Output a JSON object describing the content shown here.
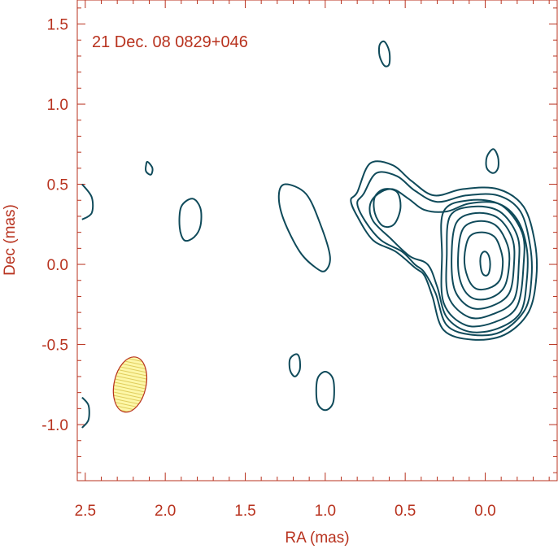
{
  "colors": {
    "axis": "#b8321e",
    "contour": "#0f4a5a",
    "beam_fill": "#fdf7a8",
    "beam_stroke": "#b8321e"
  },
  "chart_data": {
    "type": "contour",
    "annotation": "21 Dec. 08  0829+046",
    "xlabel": "RA (mas)",
    "ylabel": "Dec (mas)",
    "xlim": [
      2.55,
      -0.45
    ],
    "ylim": [
      -1.35,
      1.65
    ],
    "x_reversed": true,
    "x_ticks": [
      2.5,
      2.0,
      1.5,
      1.0,
      0.5,
      0.0
    ],
    "x_tick_labels": [
      "2.5",
      "2.0",
      "1.5",
      "1.0",
      "0.5",
      "0.0"
    ],
    "y_ticks": [
      1.5,
      1.0,
      0.5,
      0.0,
      -0.5,
      -1.0
    ],
    "y_tick_labels": [
      "1.5",
      "1.0",
      "0.5",
      "0.0",
      "-0.5",
      "-1.0"
    ],
    "beam": {
      "ra": 2.22,
      "dec": -0.75,
      "major": 0.35,
      "minor": 0.2
    },
    "contours": [
      {
        "name": "core-level-8",
        "points": [
          [
            0.02,
            0.07
          ],
          [
            0.0,
            0.08
          ],
          [
            -0.02,
            0.06
          ],
          [
            -0.03,
            0.02
          ],
          [
            -0.03,
            -0.02
          ],
          [
            -0.02,
            -0.06
          ],
          [
            0.0,
            -0.07
          ],
          [
            0.02,
            -0.05
          ],
          [
            0.03,
            0.0
          ],
          [
            0.03,
            0.04
          ]
        ]
      },
      {
        "name": "core-level-7",
        "points": [
          [
            0.1,
            0.17
          ],
          [
            0.02,
            0.2
          ],
          [
            -0.06,
            0.17
          ],
          [
            -0.1,
            0.08
          ],
          [
            -0.11,
            0.0
          ],
          [
            -0.09,
            -0.1
          ],
          [
            -0.02,
            -0.15
          ],
          [
            0.06,
            -0.15
          ],
          [
            0.11,
            -0.08
          ],
          [
            0.13,
            0.04
          ]
        ]
      },
      {
        "name": "core-level-6",
        "points": [
          [
            0.14,
            0.22
          ],
          [
            0.04,
            0.27
          ],
          [
            -0.07,
            0.24
          ],
          [
            -0.14,
            0.12
          ],
          [
            -0.15,
            0.0
          ],
          [
            -0.12,
            -0.14
          ],
          [
            -0.03,
            -0.21
          ],
          [
            0.08,
            -0.21
          ],
          [
            0.15,
            -0.12
          ],
          [
            0.17,
            0.04
          ]
        ]
      },
      {
        "name": "core-level-5",
        "points": [
          [
            0.18,
            0.26
          ],
          [
            0.06,
            0.32
          ],
          [
            -0.08,
            0.29
          ],
          [
            -0.17,
            0.16
          ],
          [
            -0.18,
            0.0
          ],
          [
            -0.15,
            -0.18
          ],
          [
            -0.04,
            -0.26
          ],
          [
            0.09,
            -0.27
          ],
          [
            0.19,
            -0.16
          ],
          [
            0.21,
            0.05
          ]
        ]
      },
      {
        "name": "core-level-4",
        "points": [
          [
            0.22,
            0.3
          ],
          [
            0.08,
            0.36
          ],
          [
            -0.09,
            0.33
          ],
          [
            -0.2,
            0.18
          ],
          [
            -0.21,
            0.0
          ],
          [
            -0.18,
            -0.22
          ],
          [
            -0.05,
            -0.31
          ],
          [
            0.1,
            -0.33
          ],
          [
            0.23,
            -0.2
          ],
          [
            0.24,
            0.06
          ]
        ]
      },
      {
        "name": "core-level-3",
        "points": [
          [
            0.26,
            0.33
          ],
          [
            0.1,
            0.4
          ],
          [
            -0.1,
            0.37
          ],
          [
            -0.23,
            0.2
          ],
          [
            -0.24,
            0.0
          ],
          [
            -0.2,
            -0.26
          ],
          [
            -0.06,
            -0.36
          ],
          [
            0.12,
            -0.38
          ],
          [
            0.26,
            -0.24
          ],
          [
            0.27,
            0.06
          ]
        ]
      },
      {
        "name": "jet-level-2",
        "points": [
          [
            0.67,
            0.44
          ],
          [
            0.58,
            0.47
          ],
          [
            0.48,
            0.41
          ],
          [
            0.38,
            0.34
          ],
          [
            0.24,
            0.33
          ],
          [
            0.1,
            0.38
          ],
          [
            -0.08,
            0.38
          ],
          [
            -0.2,
            0.28
          ],
          [
            -0.26,
            0.1
          ],
          [
            -0.26,
            -0.1
          ],
          [
            -0.22,
            -0.3
          ],
          [
            -0.08,
            -0.4
          ],
          [
            0.1,
            -0.42
          ],
          [
            0.24,
            -0.33
          ],
          [
            0.3,
            -0.14
          ],
          [
            0.36,
            0.0
          ],
          [
            0.47,
            0.05
          ],
          [
            0.59,
            0.16
          ],
          [
            0.7,
            0.27
          ],
          [
            0.72,
            0.37
          ]
        ]
      },
      {
        "name": "jet-level-1",
        "points": [
          [
            0.76,
            0.44
          ],
          [
            0.68,
            0.57
          ],
          [
            0.55,
            0.55
          ],
          [
            0.44,
            0.46
          ],
          [
            0.3,
            0.39
          ],
          [
            0.12,
            0.43
          ],
          [
            -0.08,
            0.43
          ],
          [
            -0.22,
            0.33
          ],
          [
            -0.28,
            0.12
          ],
          [
            -0.29,
            -0.08
          ],
          [
            -0.25,
            -0.28
          ],
          [
            -0.1,
            -0.42
          ],
          [
            0.08,
            -0.44
          ],
          [
            0.24,
            -0.38
          ],
          [
            0.31,
            -0.18
          ],
          [
            0.38,
            -0.05
          ],
          [
            0.44,
            0.0
          ],
          [
            0.52,
            0.08
          ],
          [
            0.65,
            0.15
          ],
          [
            0.75,
            0.27
          ],
          [
            0.8,
            0.38
          ]
        ]
      },
      {
        "name": "jet-outer",
        "points": [
          [
            0.8,
            0.45
          ],
          [
            0.72,
            0.63
          ],
          [
            0.58,
            0.62
          ],
          [
            0.46,
            0.52
          ],
          [
            0.32,
            0.43
          ],
          [
            0.14,
            0.47
          ],
          [
            -0.08,
            0.47
          ],
          [
            -0.24,
            0.36
          ],
          [
            -0.31,
            0.14
          ],
          [
            -0.32,
            -0.08
          ],
          [
            -0.27,
            -0.3
          ],
          [
            -0.12,
            -0.44
          ],
          [
            0.08,
            -0.47
          ],
          [
            0.26,
            -0.41
          ],
          [
            0.33,
            -0.2
          ],
          [
            0.38,
            -0.07
          ],
          [
            0.44,
            -0.02
          ],
          [
            0.56,
            0.08
          ],
          [
            0.7,
            0.15
          ],
          [
            0.8,
            0.3
          ],
          [
            0.84,
            0.4
          ]
        ]
      },
      {
        "name": "knot-0.63",
        "points": [
          [
            0.63,
            0.47
          ],
          [
            0.55,
            0.45
          ],
          [
            0.53,
            0.35
          ],
          [
            0.57,
            0.25
          ],
          [
            0.64,
            0.24
          ],
          [
            0.69,
            0.32
          ],
          [
            0.69,
            0.42
          ]
        ]
      },
      {
        "name": "blob-1.1",
        "points": [
          [
            1.25,
            0.5
          ],
          [
            1.12,
            0.44
          ],
          [
            1.03,
            0.25
          ],
          [
            0.97,
            0.05
          ],
          [
            1.0,
            -0.04
          ],
          [
            1.06,
            -0.02
          ],
          [
            1.16,
            0.08
          ],
          [
            1.26,
            0.28
          ],
          [
            1.29,
            0.43
          ]
        ]
      },
      {
        "name": "blob-1.8",
        "points": [
          [
            1.83,
            0.41
          ],
          [
            1.78,
            0.35
          ],
          [
            1.78,
            0.24
          ],
          [
            1.82,
            0.17
          ],
          [
            1.88,
            0.15
          ],
          [
            1.91,
            0.23
          ],
          [
            1.9,
            0.36
          ]
        ]
      },
      {
        "name": "blob-2.1",
        "points": [
          [
            2.11,
            0.64
          ],
          [
            2.08,
            0.6
          ],
          [
            2.09,
            0.56
          ],
          [
            2.12,
            0.58
          ],
          [
            2.12,
            0.62
          ]
        ]
      },
      {
        "name": "blob-2.5",
        "points": [
          [
            2.52,
            0.5
          ],
          [
            2.46,
            0.42
          ],
          [
            2.46,
            0.32
          ],
          [
            2.52,
            0.28
          ]
        ]
      },
      {
        "name": "blob-0.6-top",
        "points": [
          [
            0.63,
            1.39
          ],
          [
            0.6,
            1.33
          ],
          [
            0.6,
            1.25
          ],
          [
            0.63,
            1.24
          ],
          [
            0.66,
            1.3
          ],
          [
            0.66,
            1.37
          ]
        ]
      },
      {
        "name": "blob-0.05",
        "points": [
          [
            -0.05,
            0.72
          ],
          [
            -0.08,
            0.67
          ],
          [
            -0.08,
            0.6
          ],
          [
            -0.05,
            0.57
          ],
          [
            -0.01,
            0.6
          ],
          [
            -0.01,
            0.67
          ]
        ]
      },
      {
        "name": "blob-1.18",
        "points": [
          [
            1.18,
            -0.56
          ],
          [
            1.16,
            -0.59
          ],
          [
            1.16,
            -0.66
          ],
          [
            1.19,
            -0.7
          ],
          [
            1.22,
            -0.66
          ],
          [
            1.22,
            -0.59
          ]
        ]
      },
      {
        "name": "blob-1.0",
        "points": [
          [
            1.0,
            -0.67
          ],
          [
            0.95,
            -0.72
          ],
          [
            0.95,
            -0.86
          ],
          [
            1.0,
            -0.91
          ],
          [
            1.05,
            -0.86
          ],
          [
            1.05,
            -0.72
          ]
        ]
      },
      {
        "name": "blob-2.5-low",
        "points": [
          [
            2.52,
            -0.83
          ],
          [
            2.48,
            -0.88
          ],
          [
            2.48,
            -0.97
          ],
          [
            2.52,
            -1.02
          ]
        ]
      }
    ]
  }
}
